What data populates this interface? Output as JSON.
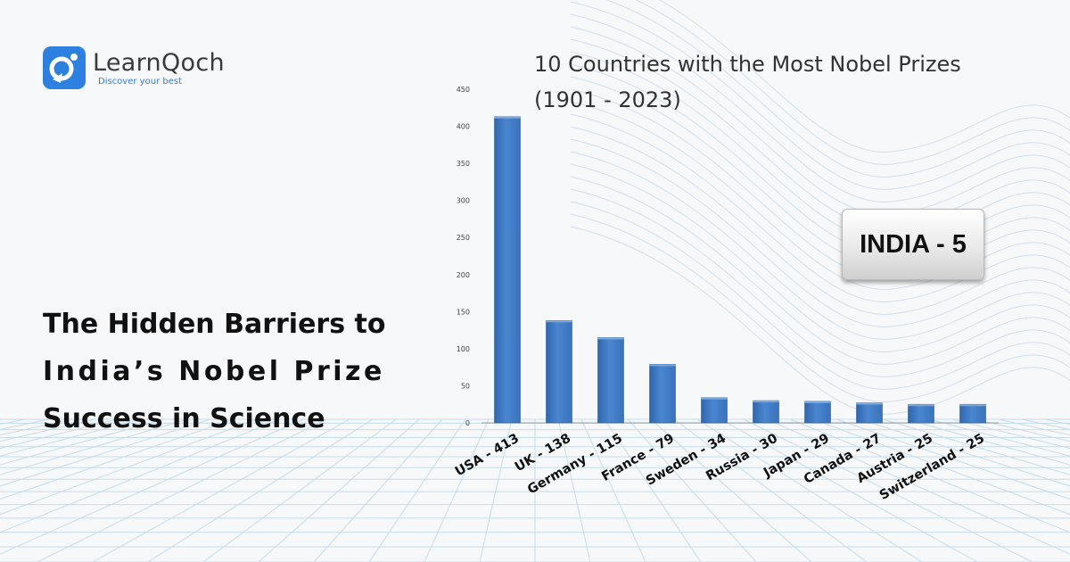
{
  "brand": {
    "name": "LearnQoch",
    "tagline": "Discover your best"
  },
  "headline": {
    "lines": [
      "The Hidden Barriers to",
      "India’s Nobel Prize",
      "Success in Science"
    ]
  },
  "badge": {
    "label": "INDIA - 5"
  },
  "colors": {
    "bar": "#4a86d0",
    "brand_blue": "#2d7fe0"
  },
  "chart_data": {
    "type": "bar",
    "title": "10 Countries with the Most Nobel Prizes",
    "subtitle": "(1901 - 2023)",
    "categories": [
      "USA - 413",
      "UK - 138",
      "Germany - 115",
      "France - 79",
      "Sweden - 34",
      "Russia - 30",
      "Japan - 29",
      "Canada - 27",
      "Austria - 25",
      "Switzerland - 25"
    ],
    "values": [
      413,
      138,
      115,
      79,
      34,
      30,
      29,
      27,
      25,
      25
    ],
    "ylim": [
      0,
      450
    ],
    "yticks": [
      0,
      50,
      100,
      150,
      200,
      250,
      300,
      350,
      400,
      450
    ],
    "grid": false,
    "legend": "none"
  }
}
